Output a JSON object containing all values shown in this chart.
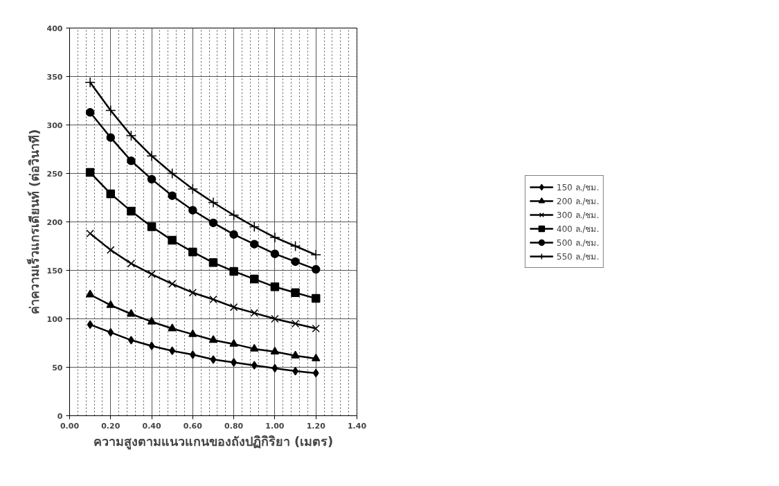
{
  "chart_data": {
    "type": "line",
    "xlabel": "ความสูงตามแนวแกนของถังปฏิกิริยา (เมตร)",
    "ylabel": "ค่าความเร็วแกรเดียนท์ (ต่อวินาที)",
    "x": [
      0.1,
      0.2,
      0.3,
      0.4,
      0.5,
      0.6,
      0.7,
      0.8,
      0.9,
      1.0,
      1.1,
      1.2
    ],
    "series": [
      {
        "name": "150 ล./ชม.",
        "color": "#000000",
        "marker": "diamond",
        "values": [
          94,
          86,
          78,
          72,
          67,
          63,
          58,
          55,
          52,
          49,
          46,
          44
        ]
      },
      {
        "name": "200 ล./ชม.",
        "color": "#000000",
        "marker": "triangle",
        "values": [
          125,
          114,
          105,
          97,
          90,
          84,
          78,
          74,
          69,
          66,
          62,
          59
        ]
      },
      {
        "name": "300 ล./ชม.",
        "color": "#000000",
        "marker": "cross",
        "values": [
          188,
          171,
          157,
          146,
          136,
          127,
          120,
          112,
          106,
          100,
          95,
          90
        ]
      },
      {
        "name": "400 ล./ชม.",
        "color": "#000000",
        "marker": "square",
        "values": [
          251,
          229,
          211,
          195,
          181,
          169,
          158,
          149,
          141,
          133,
          127,
          121
        ]
      },
      {
        "name": "500 ล./ชม.",
        "color": "#000000",
        "marker": "circle",
        "values": [
          313,
          287,
          263,
          244,
          227,
          212,
          199,
          187,
          177,
          167,
          159,
          151
        ]
      },
      {
        "name": "550 ล./ชม.",
        "color": "#000000",
        "marker": "plus",
        "values": [
          344,
          315,
          289,
          268,
          250,
          234,
          220,
          207,
          195,
          184,
          175,
          166
        ]
      }
    ],
    "xlim": [
      0,
      1.4
    ],
    "xticks": [
      {
        "value": 0,
        "label": "0.00"
      },
      {
        "value": 0.2,
        "label": "0.20"
      },
      {
        "value": 0.4,
        "label": "0.40"
      },
      {
        "value": 0.6,
        "label": "0.60"
      },
      {
        "value": 0.8,
        "label": "0.80"
      },
      {
        "value": 1.0,
        "label": "1.00"
      },
      {
        "value": 1.2,
        "label": "1.20"
      },
      {
        "value": 1.4,
        "label": "1.40"
      }
    ],
    "ylim": [
      0,
      400
    ],
    "yticks": [
      0,
      50,
      100,
      150,
      200,
      250,
      300,
      350,
      400
    ],
    "grid": true,
    "legend": "right",
    "line_style": "solid"
  }
}
